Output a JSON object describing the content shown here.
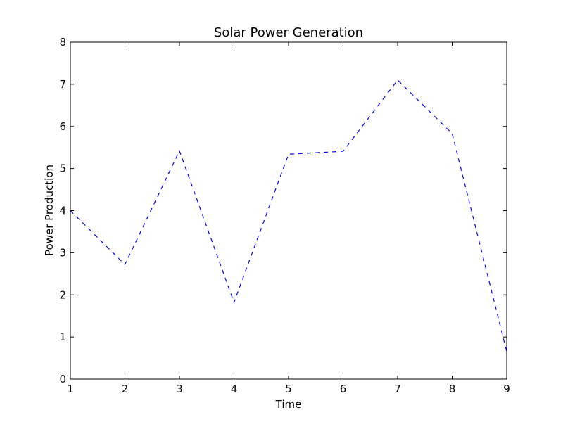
{
  "chart_data": {
    "type": "line",
    "title": "Solar Power Generation",
    "xlabel": "Time",
    "ylabel": "Power Production",
    "x": [
      1,
      2,
      3,
      4,
      5,
      6,
      7,
      8,
      9
    ],
    "series": [
      {
        "values": [
          4.0,
          2.72,
          5.42,
          1.82,
          5.34,
          5.41,
          7.1,
          5.83,
          0.65
        ],
        "color": "#0000ff",
        "line_style": "dashed"
      }
    ],
    "xlim": [
      1,
      9
    ],
    "ylim": [
      0,
      8
    ],
    "xticks": [
      "1",
      "2",
      "3",
      "4",
      "5",
      "6",
      "7",
      "8",
      "9"
    ],
    "yticks": [
      "0",
      "1",
      "2",
      "3",
      "4",
      "5",
      "6",
      "7",
      "8"
    ],
    "grid": false,
    "legend": false
  }
}
